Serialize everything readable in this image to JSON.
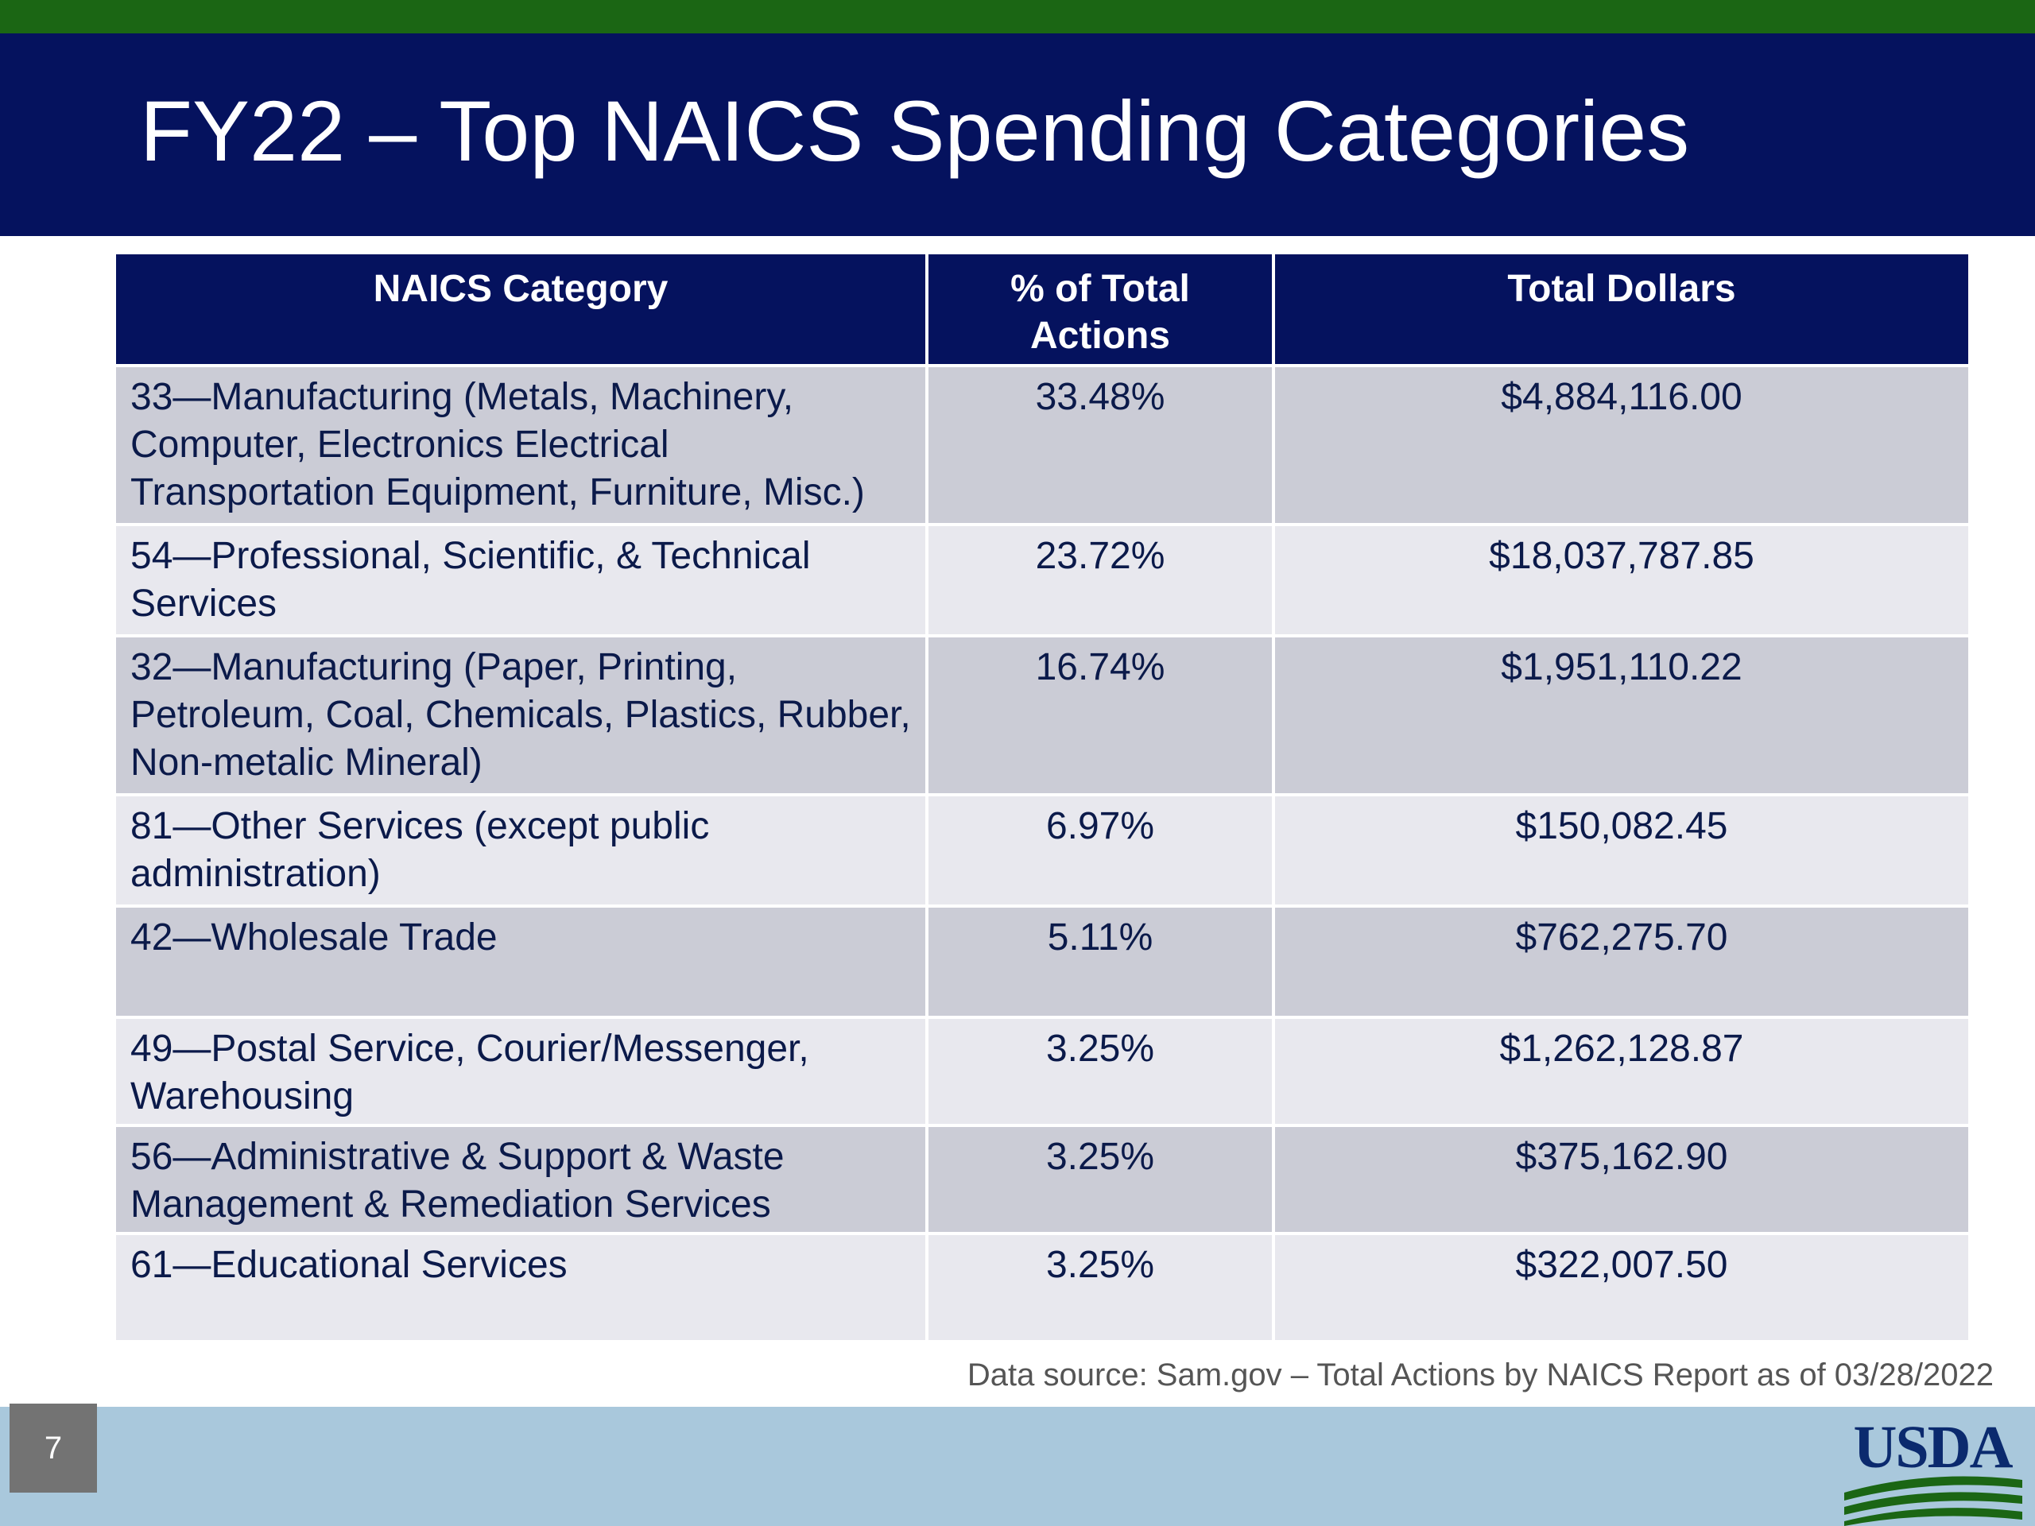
{
  "slide": {
    "title": "FY22 – Top NAICS Spending Categories",
    "page_number": "7",
    "source_note": "Data source: Sam.gov – Total Actions by NAICS Report as of 03/28/2022",
    "logo_text": "USDA"
  },
  "table": {
    "headers": [
      "NAICS Category",
      "% of Total Actions",
      "Total Dollars"
    ],
    "rows": [
      {
        "category": "33—Manufacturing (Metals, Machinery, Computer, Electronics Electrical Transportation Equipment, Furniture, Misc.)",
        "pct": "33.48%",
        "total": "$4,884,116.00"
      },
      {
        "category": "54—Professional, Scientific, & Technical Services",
        "pct": "23.72%",
        "total": "$18,037,787.85"
      },
      {
        "category": "32—Manufacturing (Paper, Printing, Petroleum, Coal, Chemicals, Plastics, Rubber, Non-metalic Mineral)",
        "pct": "16.74%",
        "total": "$1,951,110.22"
      },
      {
        "category": "81—Other Services (except public administration)",
        "pct": "6.97%",
        "total": "$150,082.45"
      },
      {
        "category": "42—Wholesale Trade",
        "pct": "5.11%",
        "total": "$762,275.70"
      },
      {
        "category": "49—Postal Service, Courier/Messenger, Warehousing",
        "pct": "3.25%",
        "total": "$1,262,128.87"
      },
      {
        "category": "56—Administrative & Support & Waste Management & Remediation Services",
        "pct": "3.25%",
        "total": "$375,162.90"
      },
      {
        "category": "61—Educational Services",
        "pct": "3.25%",
        "total": "$322,007.50"
      }
    ]
  },
  "colors": {
    "title_bar": "#05125e",
    "top_stripe": "#1b6614",
    "row_dark": "#cbccd6",
    "row_light": "#e8e8ee",
    "footer": "#a9c8dc"
  }
}
